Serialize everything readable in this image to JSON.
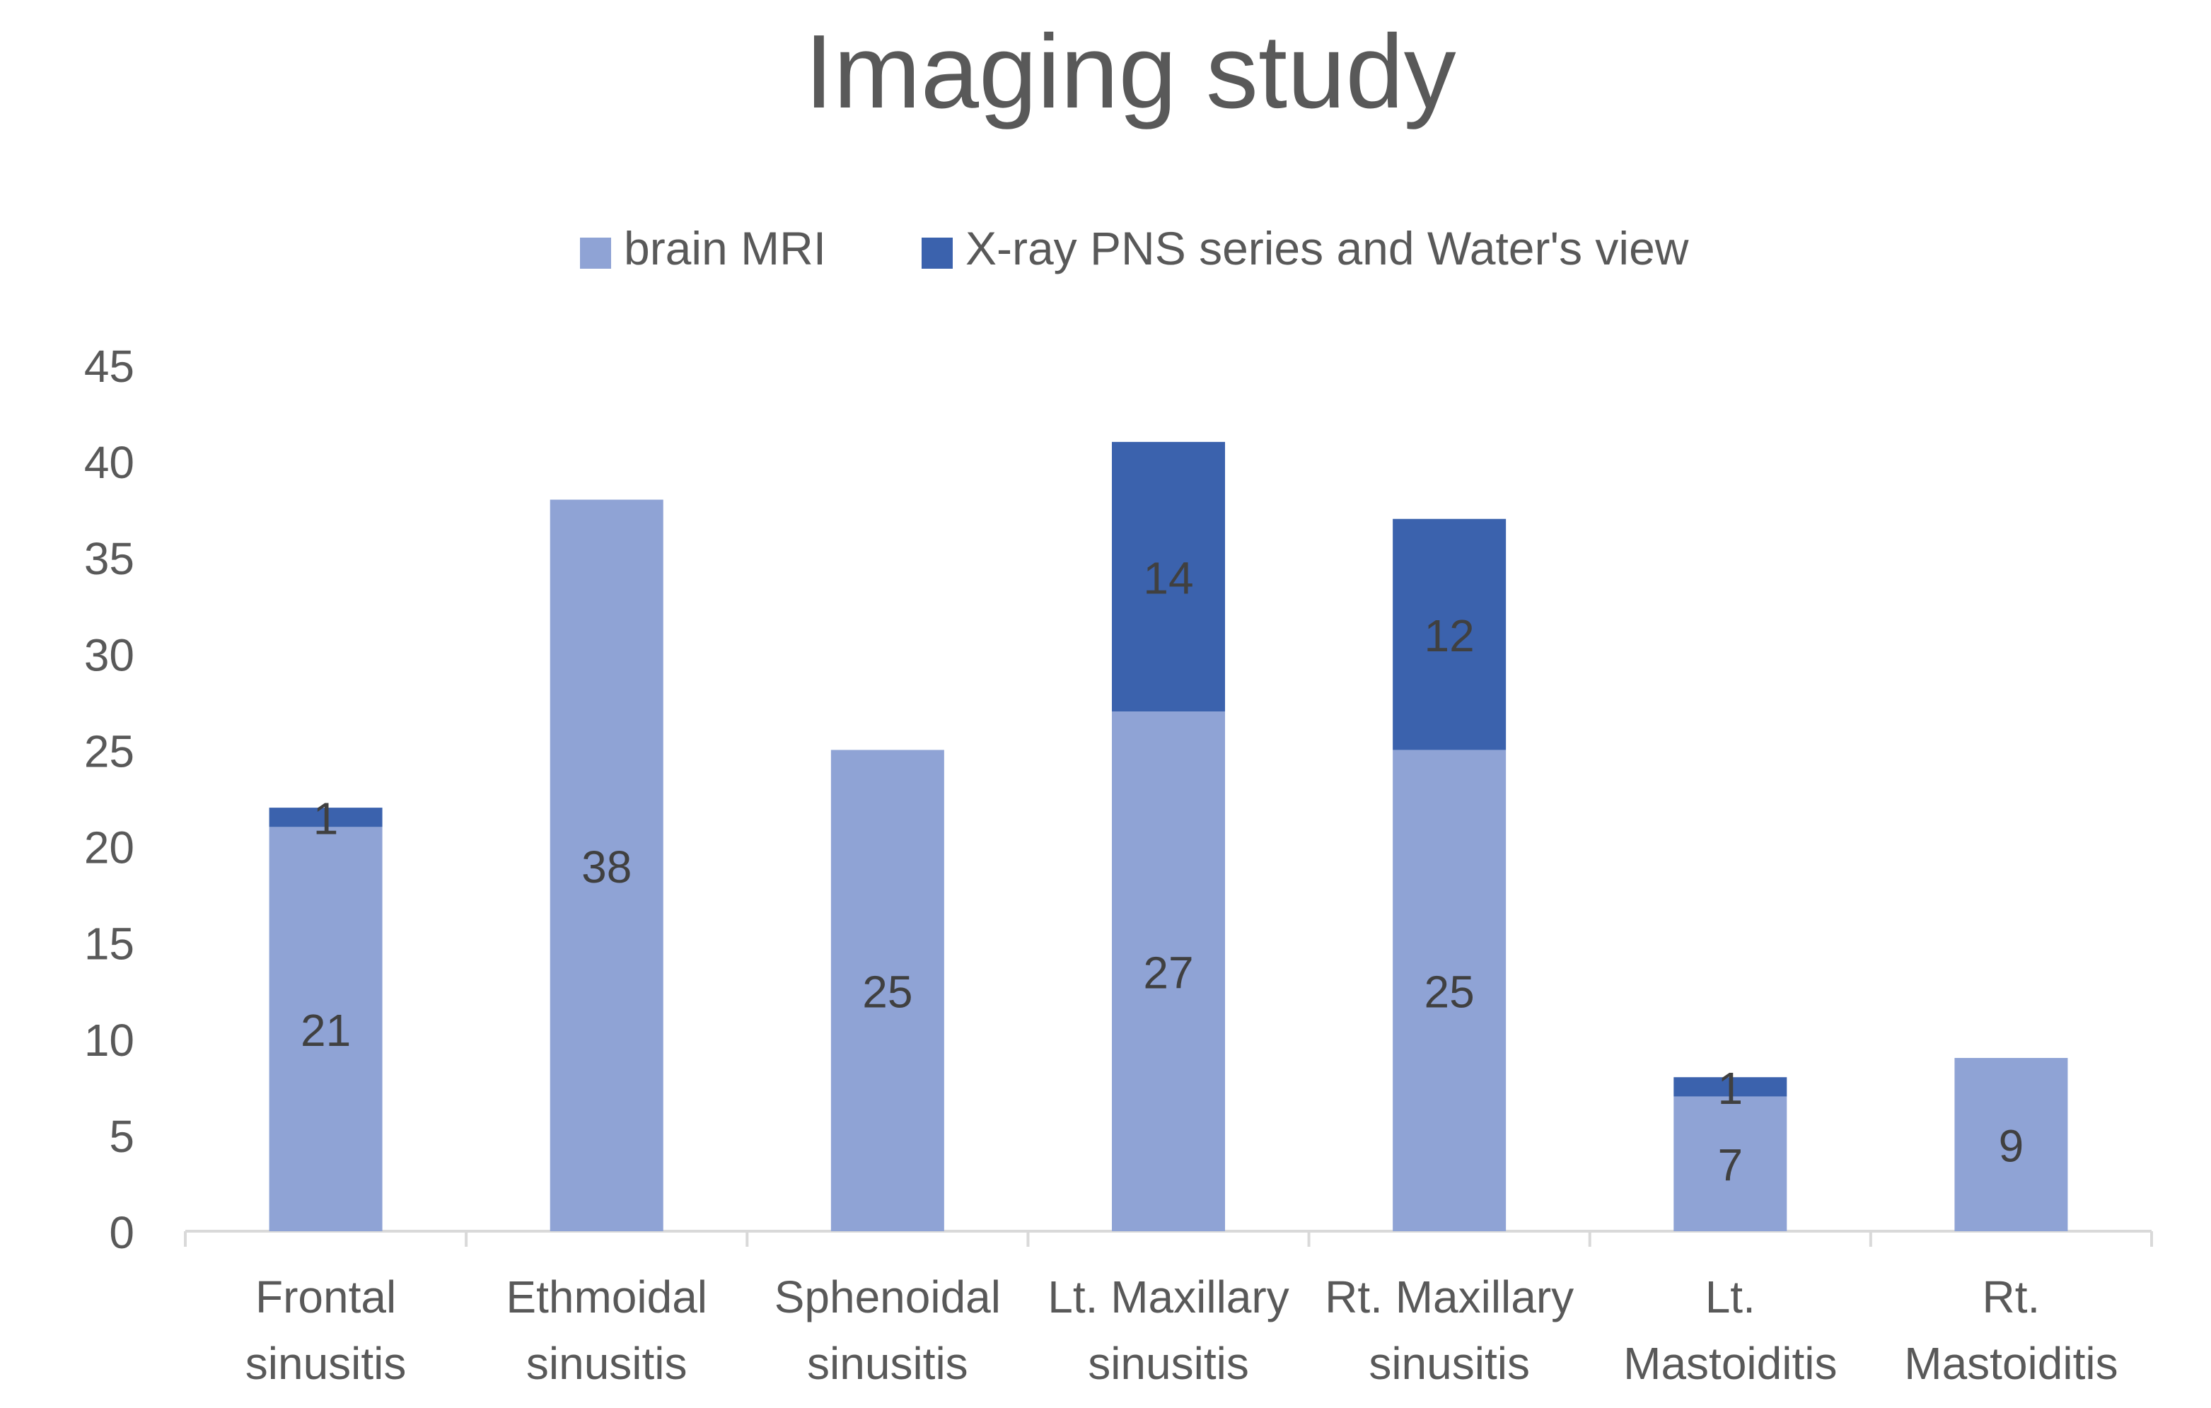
{
  "chart_data": {
    "type": "bar",
    "stacked": true,
    "title": "Imaging study",
    "categories": [
      [
        "Frontal",
        "sinusitis"
      ],
      [
        "Ethmoidal",
        "sinusitis"
      ],
      [
        "Sphenoidal",
        "sinusitis"
      ],
      [
        "Lt. Maxillary",
        "sinusitis"
      ],
      [
        "Rt. Maxillary",
        "sinusitis"
      ],
      [
        "Lt.",
        "Mastoiditis"
      ],
      [
        "Rt.",
        "Mastoiditis"
      ]
    ],
    "series": [
      {
        "name": "brain MRI",
        "color": "#8FA3D5",
        "values": [
          21,
          38,
          25,
          27,
          25,
          7,
          9
        ]
      },
      {
        "name": "X-ray PNS series and Water's view",
        "color": "#3B62AD",
        "values": [
          1,
          null,
          null,
          14,
          12,
          1,
          null
        ]
      }
    ],
    "ylim": [
      0,
      45
    ],
    "yticks": [
      0,
      5,
      10,
      15,
      20,
      25,
      30,
      35,
      40,
      45
    ],
    "grid": false,
    "legend": "top-center",
    "xlabel": "",
    "ylabel": ""
  }
}
